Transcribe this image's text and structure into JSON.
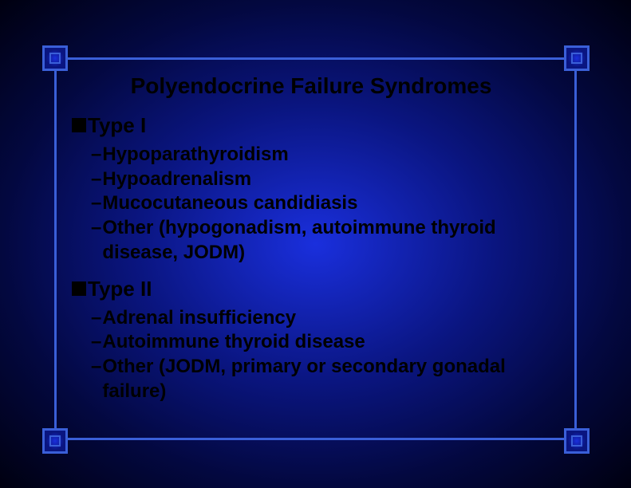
{
  "slide": {
    "title": "Polyendocrine Failure Syndromes",
    "background": {
      "gradient_center": "#1a2fdd",
      "gradient_mid": "#0a1580",
      "gradient_outer": "#030840",
      "gradient_edge": "#000010"
    },
    "frame": {
      "border_color": "#3a5fd8",
      "border_width": 3,
      "corner_size": 32
    },
    "text_color": "#000000",
    "title_fontsize": 28,
    "section_fontsize": 26,
    "item_fontsize": 24,
    "sections": [
      {
        "heading": "Type I",
        "items": [
          "Hypoparathyroidism",
          "Hypoadrenalism",
          "Mucocutaneous candidiasis",
          "Other  (hypogonadism, autoimmune thyroid disease, JODM)"
        ]
      },
      {
        "heading": "Type II",
        "items": [
          "Adrenal insufficiency",
          "Autoimmune thyroid disease",
          "Other (JODM, primary or secondary gonadal failure)"
        ]
      }
    ]
  }
}
